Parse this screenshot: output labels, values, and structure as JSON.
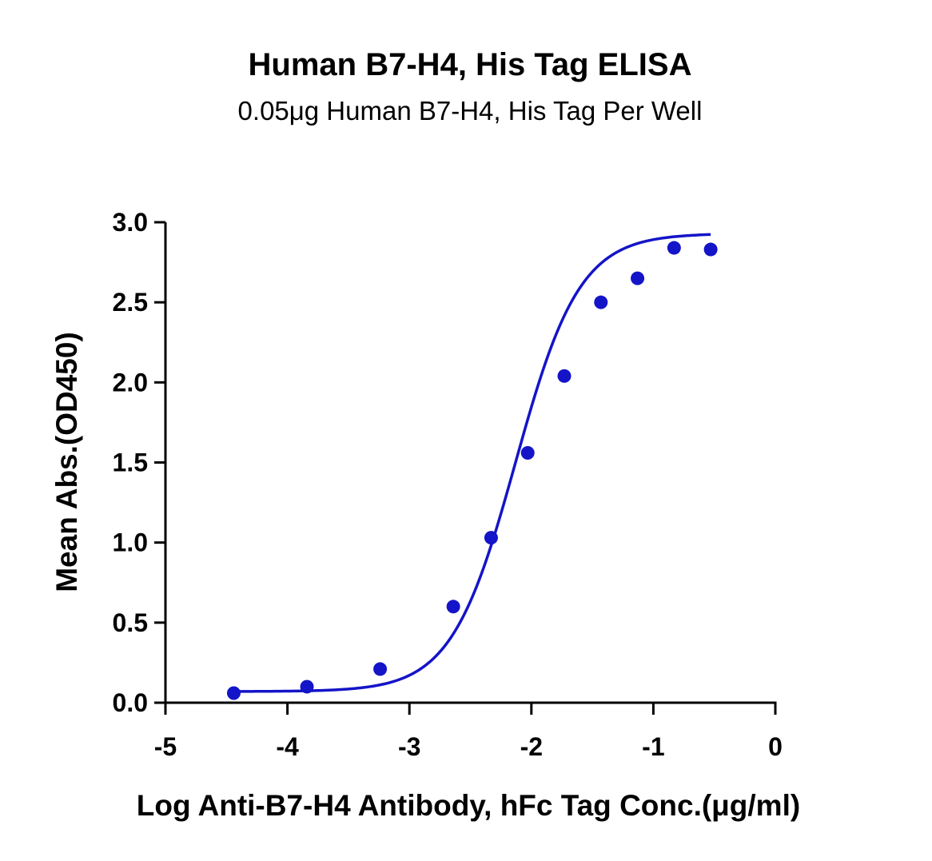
{
  "chart_data": {
    "type": "scatter",
    "title": "Human B7-H4, His Tag ELISA",
    "subtitle": "0.05μg Human B7-H4, His Tag Per Well",
    "xlabel": "Log Anti-B7-H4 Antibody, hFc Tag Conc.(μg/ml)",
    "ylabel": "Mean Abs.(OD450)",
    "xlim": [
      -5,
      0
    ],
    "ylim": [
      0,
      3.0
    ],
    "xticks": [
      -5,
      -4,
      -3,
      -2,
      -1,
      0
    ],
    "xtick_labels": [
      "-5",
      "-4",
      "-3",
      "-2",
      "-1",
      "0"
    ],
    "yticks": [
      0,
      0.5,
      1.0,
      1.5,
      2.0,
      2.5,
      3.0
    ],
    "ytick_labels": [
      "0.0",
      "0.5",
      "1.0",
      "1.5",
      "2.0",
      "2.5",
      "3.0"
    ],
    "series": [
      {
        "color": "#1414c8",
        "marker": "circle",
        "fit": "4PL sigmoidal curve",
        "x": [
          -4.44,
          -3.84,
          -3.24,
          -2.64,
          -2.33,
          -2.03,
          -1.73,
          -1.43,
          -1.13,
          -0.83,
          -0.53
        ],
        "y": [
          0.06,
          0.1,
          0.21,
          0.6,
          1.03,
          1.56,
          2.04,
          2.5,
          2.65,
          2.84,
          2.83
        ]
      }
    ],
    "grid": false,
    "legend": "none"
  }
}
